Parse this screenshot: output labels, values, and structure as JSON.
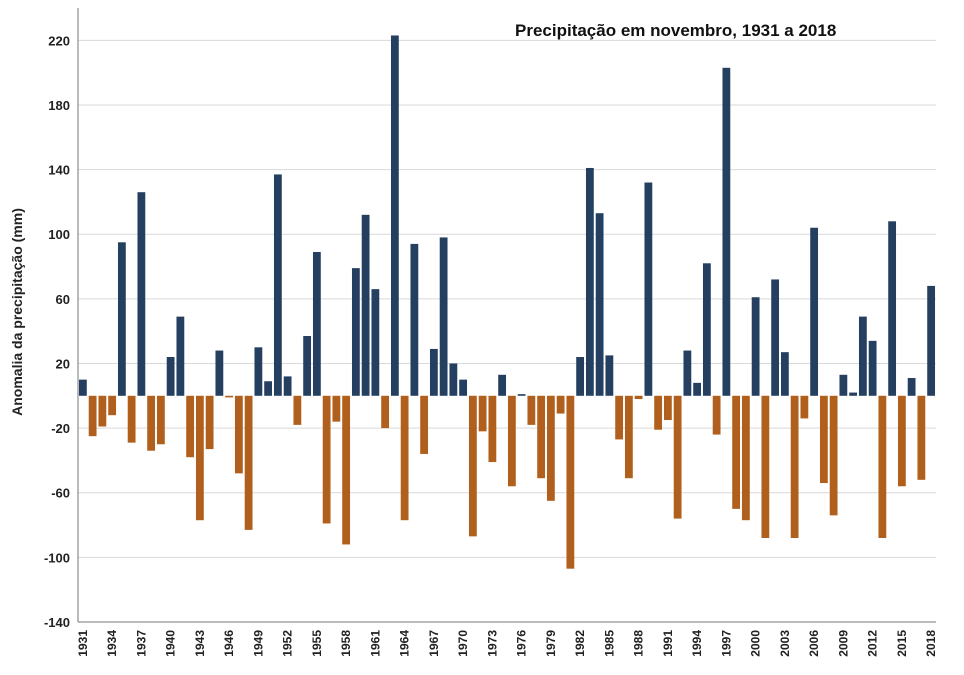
{
  "chart_data": {
    "type": "bar",
    "title": "Precipitação em novembro, 1931 a 2018",
    "xlabel": "",
    "ylabel": "Anomalia da precipitação (mm)",
    "ylim": [
      -140,
      240
    ],
    "yticks": [
      -140,
      -100,
      -60,
      -20,
      20,
      60,
      100,
      140,
      180,
      220
    ],
    "xtick_labels": [
      "1931",
      "1934",
      "1937",
      "1940",
      "1943",
      "1946",
      "1949",
      "1952",
      "1955",
      "1958",
      "1961",
      "1964",
      "1967",
      "1970",
      "1973",
      "1976",
      "1979",
      "1982",
      "1985",
      "1988",
      "1991",
      "1994",
      "1997",
      "2000",
      "2003",
      "2006",
      "2009",
      "2012",
      "2015",
      "2018"
    ],
    "grid": true,
    "positive_color": "#243f60",
    "negative_color": "#b05f1c",
    "x_start": 1931,
    "values": [
      10,
      -25,
      -19,
      -12,
      95,
      -29,
      126,
      -34,
      -30,
      24,
      49,
      -38,
      -77,
      -33,
      28,
      -1,
      -48,
      -83,
      30,
      9,
      137,
      12,
      -18,
      37,
      89,
      -79,
      -16,
      -92,
      79,
      112,
      66,
      -20,
      223,
      -77,
      94,
      -36,
      29,
      98,
      20,
      10,
      -87,
      -22,
      -41,
      13,
      -56,
      1,
      -18,
      -51,
      -65,
      -11,
      -107,
      24,
      141,
      113,
      25,
      -27,
      -51,
      -2,
      132,
      -21,
      -15,
      -76,
      28,
      8,
      82,
      -24,
      203,
      -70,
      -77,
      61,
      -88,
      72,
      27,
      -88,
      -14,
      104,
      -54,
      -74,
      13,
      2,
      49,
      34,
      -88,
      108,
      -56,
      11,
      -52,
      68
    ]
  }
}
